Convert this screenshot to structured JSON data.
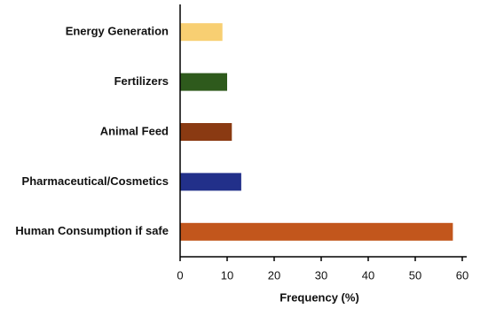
{
  "chart_data": {
    "type": "barh",
    "categories": [
      "Energy Generation",
      "Fertilizers",
      "Animal Feed",
      "Pharmaceutical/Cosmetics",
      "Human Consumption if safe"
    ],
    "values": [
      9,
      10,
      11,
      13,
      58
    ],
    "colors": [
      "#f8cf72",
      "#2e5a1c",
      "#8a3a12",
      "#22308a",
      "#c2561c"
    ],
    "xlabel": "Frequency (%)",
    "xlim": [
      0,
      60
    ],
    "xticks": [
      0,
      10,
      20,
      30,
      40,
      50,
      60
    ],
    "grid": false
  }
}
